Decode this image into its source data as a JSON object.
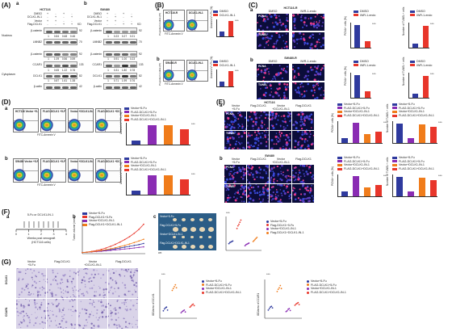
{
  "labels": {
    "A": "(A)",
    "Aa": "a",
    "Ab": "b",
    "B": "(B)",
    "Ba": "a",
    "Bb": "b",
    "C": "(C)",
    "Ca": "a",
    "Cb": "b",
    "D": "(D)",
    "Da": "a",
    "Db": "b",
    "E": "(E)",
    "Ea": "a",
    "Eb": "b",
    "F": "(F)",
    "Fa": "a",
    "Fb": "b",
    "Fc": "c",
    "G": "(G)"
  },
  "blotA": {
    "cell": "HCT116",
    "treat": [
      {
        "name": "DMSO",
        "v": [
          "+",
          "-",
          "+",
          "-"
        ]
      },
      {
        "name": "DCLK1-IN-1",
        "v": [
          "-",
          "+",
          "-",
          "+"
        ]
      },
      {
        "name": "Vector",
        "v": [
          "+",
          "+",
          "-",
          "-"
        ]
      },
      {
        "name": "Flag-DCLK1",
        "v": [
          "-",
          "-",
          "+",
          "+"
        ]
      }
    ],
    "sections": [
      "Nucleus",
      "Cytoplasm"
    ],
    "rows": [
      {
        "label": "β-catenin",
        "kd": "92",
        "q": [
          "1",
          "0.84",
          "0.68",
          "0.46"
        ]
      },
      {
        "label": "LMNB2",
        "kd": "70",
        "q": []
      },
      {
        "label": "β-catenin",
        "kd": "92",
        "q": [
          "1",
          "1.09",
          "0.56",
          "0.59"
        ]
      },
      {
        "label": "CCAR1",
        "kd": "133",
        "q": [
          "1",
          "0.65",
          "1.22",
          "0.76"
        ]
      },
      {
        "label": "DCLK1",
        "kd": "82",
        "q": [
          "1",
          "0.87",
          "1.61",
          "1.38"
        ]
      },
      {
        "label": "β-actin",
        "kd": "42",
        "q": []
      }
    ]
  },
  "blotB": {
    "cell": "SW480",
    "treat": [
      {
        "name": "DMSO",
        "v": [
          "+",
          "-",
          "+",
          "-"
        ]
      },
      {
        "name": "DCLK1-IN-1",
        "v": [
          "-",
          "+",
          "-",
          "+"
        ]
      },
      {
        "name": "Vector",
        "v": [
          "+",
          "+",
          "-",
          "-"
        ]
      },
      {
        "name": "Flag-DCLK1",
        "v": [
          "-",
          "-",
          "+",
          "+"
        ]
      }
    ],
    "rows": [
      {
        "label": "β-catenin",
        "kd": "92",
        "q": [
          "1",
          "0.23",
          "0.27",
          "0.21"
        ]
      },
      {
        "label": "LMNB2",
        "kd": "70",
        "q": []
      },
      {
        "label": "β-catenin",
        "kd": "92",
        "q": [
          "1",
          "0.91",
          "1.00",
          "0.23"
        ]
      },
      {
        "label": "CCAR1",
        "kd": "133",
        "q": [
          "1",
          "0.31",
          "1.80",
          "0.78"
        ]
      },
      {
        "label": "DCLK1",
        "kd": "82",
        "q": [
          "1",
          "0.71",
          "1.99",
          "0.76"
        ]
      },
      {
        "label": "β-actin",
        "kd": "42",
        "q": []
      }
    ]
  },
  "panelB": {
    "xlabel": "FITC-Annexin V",
    "ylabel": "Propidium Iodide (PI)",
    "a": {
      "cells": "HCT116-R",
      "left": "DMSO",
      "right": "DCLK1-IN-1",
      "legend": [
        "DMSO",
        "DCLK1-IN-1"
      ],
      "ylab": "Annexin V+-PI- (%)",
      "colors": [
        "#2f3a9e",
        "#e8362b"
      ]
    },
    "b": {
      "cells": "SW480-R",
      "left": "DMSO",
      "right": "DCLK1-IN-1",
      "legend": [
        "DMSO",
        "DCLK1-IN-1"
      ],
      "ylab": "Annexin V+-PI- (%)",
      "colors": [
        "#2f3a9e",
        "#e8362b"
      ]
    }
  },
  "panelC": {
    "a": {
      "cells": "HCT116-R",
      "left": "DMSO",
      "right": "IWR-1-endo",
      "legend": [
        "DMSO",
        "IWR-1-endo"
      ]
    },
    "b": {
      "cells": "SW480-R",
      "left": "DMSO",
      "right": "IWR-1-endo",
      "legend": [
        "DMSO",
        "IWR-1-endo"
      ]
    },
    "ylab1": "PCNA+ cells (%)",
    "ylab2": "Number of TUNEL+ cells",
    "colors": [
      "#2f3a9e",
      "#e8362b"
    ]
  },
  "panelD": {
    "a": {
      "cells": "HCT116",
      "conds": [
        "Vector +5-Fu",
        "FLAG-DCLK1 +5-Fu",
        "Vector +DCLK1-IN-1",
        "FLAG-DCLK1 +DCLK1-IN-1"
      ]
    },
    "b": {
      "cells": "SW480",
      "conds": [
        "Vector +5-Fu",
        "FLAG-DCLK1 +5-Fu",
        "Vector +DCLK1-IN-1",
        "FLAG-DCLK1 +DCLK1-IN-1"
      ]
    },
    "legend": [
      "Vector+5-Fu",
      "FLAG-DCLK1+5-Fu",
      "Vector+DCLK1-IN-1",
      "FLAG-DCLK1+DCLK1-IN-1"
    ],
    "colors": [
      "#2f3a9e",
      "#8a2cb3",
      "#f07c1b",
      "#e8362b"
    ],
    "xlabel": "FITC-Annexin V",
    "ylabel": "Propidium Iodide (PI)",
    "ylab": "Annexin V+-PI- (%)"
  },
  "panelE": {
    "a": {
      "cells": "HCT116"
    },
    "b": {
      "cells": "SW480"
    },
    "cols": [
      [
        "Vector",
        "+5-Fu"
      ],
      [
        "Flag-DCLK1",
        ""
      ],
      [
        "Vector",
        "+DCLK1-IN-1"
      ],
      [
        "Flag-DCLK1",
        ""
      ]
    ],
    "legend": [
      "Vector+5-Fu",
      "FLAG-DCLK1+5-Fu",
      "Vector+DCLK1-IN-1",
      "FLAG-DCLK1+DCLK1-IN-1"
    ],
    "ylab1": "PCNA+ cells (%)",
    "ylab2": "Number of TUNEL+ cells",
    "colors": [
      "#2f3a9e",
      "#8a2cb3",
      "#f07c1b",
      "#e8362b"
    ]
  },
  "panelF": {
    "schedule": {
      "top": "5-Fu or DCLK1-IN-1",
      "x": "Weeks post xenograft",
      "x2": "(HCT116 cells)",
      "ticks": [
        "0",
        "1",
        "2",
        "3",
        "4"
      ]
    },
    "legend": [
      "Vector+5-Fu",
      "Flag-DCLK1+5-Fu",
      "Vector+DCLK1-IN-1",
      "Flag-DCLK1+DCLK1-IN-1"
    ],
    "colors": [
      "#2f3a9e",
      "#e8362b",
      "#8a2cb3",
      "#f07c1b"
    ],
    "ylab": "Tumor volume (mm3)",
    "xlab": "Days",
    "xticks": [
      "7",
      "10",
      "13",
      "16",
      "19",
      "22",
      "25",
      "28",
      "31",
      "34",
      "37",
      "40",
      "43",
      "46"
    ],
    "yticks": [
      "0",
      "100",
      "200",
      "300",
      "400",
      "500",
      "600"
    ],
    "ruler": "cm",
    "tumor_rows": [
      "Vector+5-Fu",
      "Flag-DCLK1+5-Fu",
      "Vector+DCLK1-IN-1",
      "Flag-DCLK1+DCLK1-IN-1"
    ],
    "dot_ylab": "Tumor volume (mm3)",
    "dot_legend": [
      "Vector+5-Fu",
      "Flag-DCLK1+5-Fu",
      "Vector+DCLK1-IN-1",
      "Flag-DCLK1+DCLK1-IN-1"
    ],
    "sig": "***"
  },
  "panelG": {
    "cols": [
      [
        "Vector",
        "+5-Fu"
      ],
      [
        "Flag-DCLK1",
        ""
      ],
      [
        "Vector",
        "+DCLK1-IN-1"
      ],
      [
        "Flag-DCLK1",
        ""
      ]
    ],
    "rows": [
      "DCLK1",
      "CCAR1"
    ],
    "legend": [
      "Vector+5-Fu",
      "FLAG-DCLK1+5-Fu",
      "Vector+DCLK1-IN-1",
      "FLAG-DCLK1+DCLK1-IN-1"
    ],
    "ylab1": "IOD/area of DCLK1",
    "ylab2": "IOD/area of CCAR1",
    "colors": [
      "#2f3a9e",
      "#f07c1b",
      "#8a2cb3",
      "#e8362b"
    ],
    "sig": "***"
  }
}
